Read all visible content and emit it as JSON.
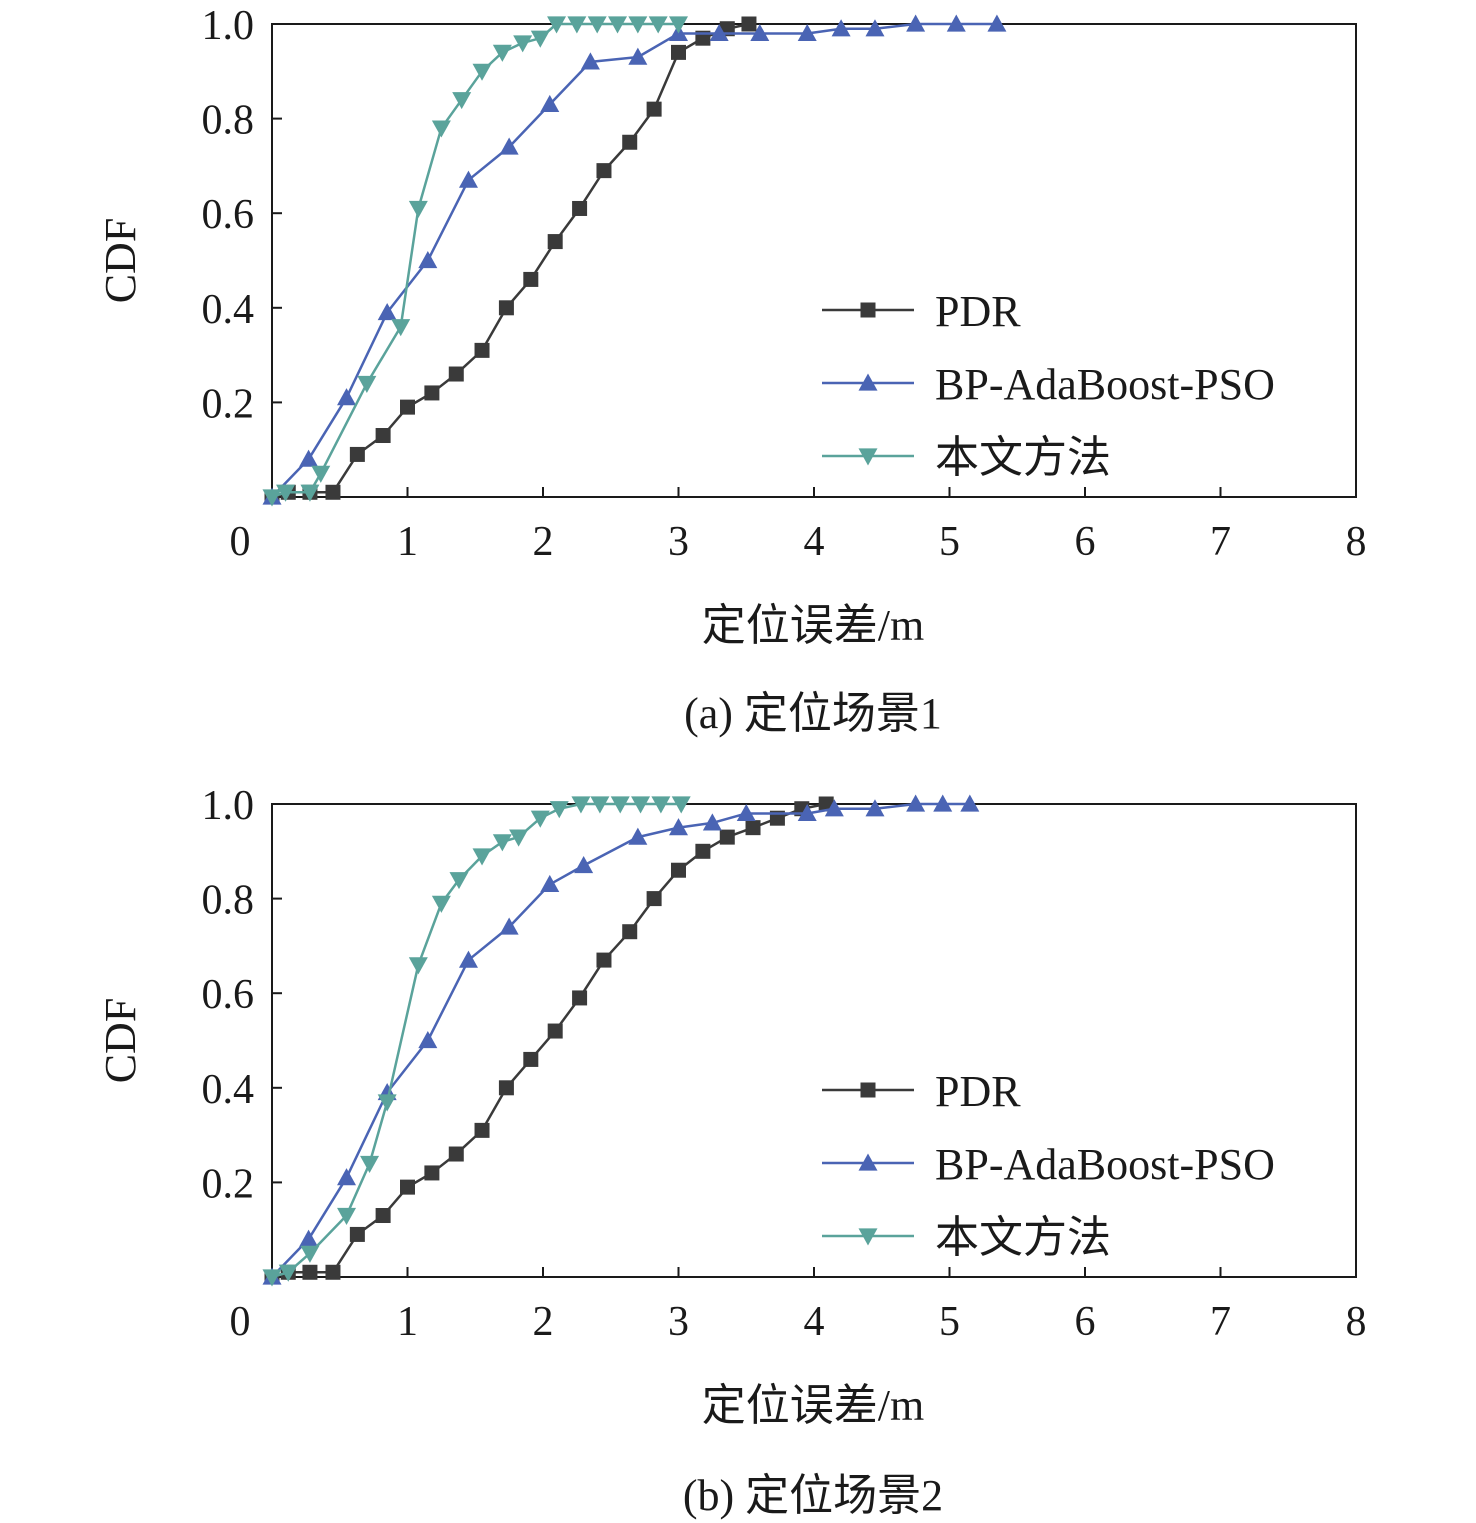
{
  "chart_data": [
    {
      "type": "line",
      "caption": "(a) 定位场景1",
      "xlabel": "定位误差/m",
      "ylabel": "CDF",
      "xlim": [
        0,
        8
      ],
      "ylim": [
        0,
        1
      ],
      "x_ticks": [
        "0",
        "1",
        "2",
        "3",
        "4",
        "5",
        "6",
        "7",
        "8"
      ],
      "y_ticks": [
        "0.2",
        "0.4",
        "0.6",
        "0.8",
        "1.0"
      ],
      "legend_position": "right",
      "series": [
        {
          "name": "PDR",
          "color": "#3a3a3a",
          "marker": "square",
          "x": [
            0,
            0.12,
            0.28,
            0.45,
            0.63,
            0.82,
            1.0,
            1.18,
            1.36,
            1.55,
            1.73,
            1.91,
            2.09,
            2.27,
            2.45,
            2.64,
            2.82,
            3.0,
            3.18,
            3.36,
            3.52
          ],
          "y": [
            0.0,
            0.01,
            0.01,
            0.01,
            0.09,
            0.13,
            0.19,
            0.22,
            0.26,
            0.31,
            0.4,
            0.46,
            0.54,
            0.61,
            0.69,
            0.75,
            0.82,
            0.94,
            0.97,
            0.99,
            1.0
          ]
        },
        {
          "name": "BP-AdaBoost-PSO",
          "color": "#4a64b4",
          "marker": "triangle-up",
          "x": [
            0,
            0.27,
            0.55,
            0.85,
            1.15,
            1.45,
            1.75,
            2.05,
            2.35,
            2.7,
            3.0,
            3.3,
            3.6,
            3.95,
            4.2,
            4.45,
            4.75,
            5.05,
            5.35
          ],
          "y": [
            0.0,
            0.08,
            0.21,
            0.39,
            0.5,
            0.67,
            0.74,
            0.83,
            0.92,
            0.93,
            0.98,
            0.98,
            0.98,
            0.98,
            0.99,
            0.99,
            1.0,
            1.0,
            1.0
          ]
        },
        {
          "name": "本文方法",
          "color": "#5aa39b",
          "marker": "triangle-down",
          "x": [
            0,
            0.1,
            0.28,
            0.36,
            0.7,
            0.95,
            1.08,
            1.25,
            1.4,
            1.55,
            1.7,
            1.85,
            1.98,
            2.1,
            2.25,
            2.4,
            2.55,
            2.7,
            2.85,
            3.0
          ],
          "y": [
            0.0,
            0.01,
            0.01,
            0.05,
            0.24,
            0.36,
            0.61,
            0.78,
            0.84,
            0.9,
            0.94,
            0.96,
            0.97,
            1.0,
            1.0,
            1.0,
            1.0,
            1.0,
            1.0,
            1.0
          ]
        }
      ]
    },
    {
      "type": "line",
      "caption": "(b) 定位场景2",
      "xlabel": "定位误差/m",
      "ylabel": "CDF",
      "xlim": [
        0,
        8
      ],
      "ylim": [
        0,
        1
      ],
      "x_ticks": [
        "0",
        "1",
        "2",
        "3",
        "4",
        "5",
        "6",
        "7",
        "8"
      ],
      "y_ticks": [
        "0.2",
        "0.4",
        "0.6",
        "0.8",
        "1.0"
      ],
      "legend_position": "right",
      "series": [
        {
          "name": "PDR",
          "color": "#3a3a3a",
          "marker": "square",
          "x": [
            0,
            0.12,
            0.28,
            0.45,
            0.63,
            0.82,
            1.0,
            1.18,
            1.36,
            1.55,
            1.73,
            1.91,
            2.09,
            2.27,
            2.45,
            2.64,
            2.82,
            3.0,
            3.18,
            3.36,
            3.55,
            3.73,
            3.91,
            4.09
          ],
          "y": [
            0.0,
            0.01,
            0.01,
            0.01,
            0.09,
            0.13,
            0.19,
            0.22,
            0.26,
            0.31,
            0.4,
            0.46,
            0.52,
            0.59,
            0.67,
            0.73,
            0.8,
            0.86,
            0.9,
            0.93,
            0.95,
            0.97,
            0.99,
            1.0
          ]
        },
        {
          "name": "BP-AdaBoost-PSO",
          "color": "#4a64b4",
          "marker": "triangle-up",
          "x": [
            0,
            0.27,
            0.55,
            0.85,
            1.15,
            1.45,
            1.75,
            2.05,
            2.3,
            2.7,
            3.0,
            3.25,
            3.5,
            3.95,
            4.15,
            4.45,
            4.75,
            4.95,
            5.15
          ],
          "y": [
            0.0,
            0.08,
            0.21,
            0.39,
            0.5,
            0.67,
            0.74,
            0.83,
            0.87,
            0.93,
            0.95,
            0.96,
            0.98,
            0.98,
            0.99,
            0.99,
            1.0,
            1.0,
            1.0
          ]
        },
        {
          "name": "本文方法",
          "color": "#5aa39b",
          "marker": "triangle-down",
          "x": [
            0,
            0.12,
            0.28,
            0.55,
            0.72,
            0.85,
            1.08,
            1.25,
            1.38,
            1.55,
            1.7,
            1.82,
            1.98,
            2.12,
            2.28,
            2.42,
            2.57,
            2.72,
            2.87,
            3.02
          ],
          "y": [
            0.0,
            0.01,
            0.05,
            0.13,
            0.24,
            0.37,
            0.66,
            0.79,
            0.84,
            0.89,
            0.92,
            0.93,
            0.97,
            0.99,
            1.0,
            1.0,
            1.0,
            1.0,
            1.0,
            1.0
          ]
        }
      ]
    }
  ]
}
